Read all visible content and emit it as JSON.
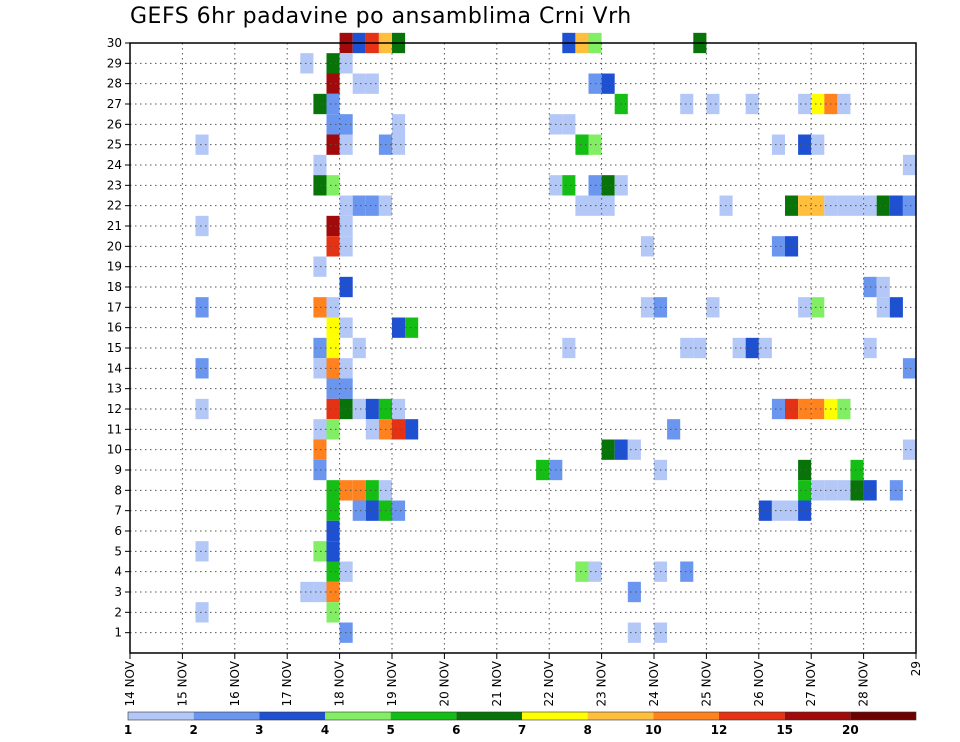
{
  "chart_data": {
    "type": "heatmap",
    "title": "GEFS 6hr padavine po ansamblima Crni Vrh",
    "xlabel": "",
    "ylabel": "",
    "x_tick_labels": [
      "14 NOV",
      "15 NOV",
      "16 NOV",
      "17 NOV",
      "18 NOV",
      "19 NOV",
      "20 NOV",
      "21 NOV",
      "22 NOV",
      "23 NOV",
      "24 NOV",
      "25 NOV",
      "26 NOV",
      "27 NOV",
      "28 NOV",
      "29"
    ],
    "y_tick_labels": [
      "1",
      "2",
      "3",
      "4",
      "5",
      "6",
      "7",
      "8",
      "9",
      "10",
      "11",
      "12",
      "13",
      "14",
      "15",
      "16",
      "17",
      "18",
      "19",
      "20",
      "21",
      "22",
      "23",
      "24",
      "25",
      "26",
      "27",
      "28",
      "29",
      "30"
    ],
    "x_range_days": [
      0,
      15
    ],
    "y_range_members": [
      0,
      30
    ],
    "grid": true,
    "colorbar_labels": [
      "1",
      "2",
      "3",
      "4",
      "5",
      "6",
      "7",
      "8",
      "10",
      "12",
      "15",
      "20"
    ],
    "palette": [
      "#b4c8f8",
      "#6a96f0",
      "#1e50d2",
      "#82ee64",
      "#14be14",
      "#087308",
      "#ffff00",
      "#ffbe3c",
      "#ff821e",
      "#e63214",
      "#a00a0a",
      "#6e0000"
    ],
    "cells": [
      {
        "day": 4.0,
        "member": 30,
        "c": 10
      },
      {
        "day": 4.25,
        "member": 30,
        "c": 2
      },
      {
        "day": 4.5,
        "member": 30,
        "c": 9
      },
      {
        "day": 4.75,
        "member": 30,
        "c": 7
      },
      {
        "day": 5.0,
        "member": 30,
        "c": 5
      },
      {
        "day": 8.25,
        "member": 30,
        "c": 2
      },
      {
        "day": 8.5,
        "member": 30,
        "c": 7
      },
      {
        "day": 8.75,
        "member": 30,
        "c": 3
      },
      {
        "day": 10.75,
        "member": 30,
        "c": 5
      },
      {
        "day": 3.25,
        "member": 29,
        "c": 0
      },
      {
        "day": 3.75,
        "member": 29,
        "c": 5
      },
      {
        "day": 4.0,
        "member": 29,
        "c": 0
      },
      {
        "day": 3.75,
        "member": 28,
        "c": 10
      },
      {
        "day": 4.25,
        "member": 28,
        "c": 0
      },
      {
        "day": 4.5,
        "member": 28,
        "c": 0
      },
      {
        "day": 8.75,
        "member": 28,
        "c": 1
      },
      {
        "day": 9.0,
        "member": 28,
        "c": 2
      },
      {
        "day": 3.5,
        "member": 27,
        "c": 5
      },
      {
        "day": 3.75,
        "member": 27,
        "c": 1
      },
      {
        "day": 9.25,
        "member": 27,
        "c": 4
      },
      {
        "day": 10.5,
        "member": 27,
        "c": 0
      },
      {
        "day": 11.0,
        "member": 27,
        "c": 0
      },
      {
        "day": 11.75,
        "member": 27,
        "c": 0
      },
      {
        "day": 12.75,
        "member": 27,
        "c": 0
      },
      {
        "day": 13.0,
        "member": 27,
        "c": 6
      },
      {
        "day": 13.25,
        "member": 27,
        "c": 8
      },
      {
        "day": 13.5,
        "member": 27,
        "c": 0
      },
      {
        "day": 3.75,
        "member": 26,
        "c": 1
      },
      {
        "day": 4.0,
        "member": 26,
        "c": 1
      },
      {
        "day": 5.0,
        "member": 26,
        "c": 0
      },
      {
        "day": 8.0,
        "member": 26,
        "c": 0
      },
      {
        "day": 8.25,
        "member": 26,
        "c": 0
      },
      {
        "day": 1.25,
        "member": 25,
        "c": 0
      },
      {
        "day": 3.75,
        "member": 25,
        "c": 10
      },
      {
        "day": 4.0,
        "member": 25,
        "c": 0
      },
      {
        "day": 4.75,
        "member": 25,
        "c": 1
      },
      {
        "day": 5.0,
        "member": 25,
        "c": 0
      },
      {
        "day": 8.5,
        "member": 25,
        "c": 4
      },
      {
        "day": 8.75,
        "member": 25,
        "c": 3
      },
      {
        "day": 12.25,
        "member": 25,
        "c": 0
      },
      {
        "day": 12.75,
        "member": 25,
        "c": 2
      },
      {
        "day": 13.0,
        "member": 25,
        "c": 0
      },
      {
        "day": 3.5,
        "member": 24,
        "c": 0
      },
      {
        "day": 14.75,
        "member": 24,
        "c": 0
      },
      {
        "day": 3.5,
        "member": 23,
        "c": 5
      },
      {
        "day": 3.75,
        "member": 23,
        "c": 3
      },
      {
        "day": 8.0,
        "member": 23,
        "c": 0
      },
      {
        "day": 8.25,
        "member": 23,
        "c": 4
      },
      {
        "day": 8.75,
        "member": 23,
        "c": 1
      },
      {
        "day": 9.0,
        "member": 23,
        "c": 5
      },
      {
        "day": 9.25,
        "member": 23,
        "c": 0
      },
      {
        "day": 4.0,
        "member": 22,
        "c": 0
      },
      {
        "day": 4.25,
        "member": 22,
        "c": 1
      },
      {
        "day": 4.5,
        "member": 22,
        "c": 1
      },
      {
        "day": 4.75,
        "member": 22,
        "c": 0
      },
      {
        "day": 8.5,
        "member": 22,
        "c": 0
      },
      {
        "day": 8.75,
        "member": 22,
        "c": 0
      },
      {
        "day": 9.0,
        "member": 22,
        "c": 0
      },
      {
        "day": 11.25,
        "member": 22,
        "c": 0
      },
      {
        "day": 12.5,
        "member": 22,
        "c": 5
      },
      {
        "day": 12.75,
        "member": 22,
        "c": 7
      },
      {
        "day": 13.0,
        "member": 22,
        "c": 7
      },
      {
        "day": 13.25,
        "member": 22,
        "c": 0
      },
      {
        "day": 13.5,
        "member": 22,
        "c": 0
      },
      {
        "day": 13.75,
        "member": 22,
        "c": 0
      },
      {
        "day": 14.0,
        "member": 22,
        "c": 0
      },
      {
        "day": 14.25,
        "member": 22,
        "c": 5
      },
      {
        "day": 14.5,
        "member": 22,
        "c": 2
      },
      {
        "day": 14.75,
        "member": 22,
        "c": 1
      },
      {
        "day": 1.25,
        "member": 21,
        "c": 0
      },
      {
        "day": 3.75,
        "member": 21,
        "c": 10
      },
      {
        "day": 4.0,
        "member": 21,
        "c": 0
      },
      {
        "day": 3.75,
        "member": 20,
        "c": 9
      },
      {
        "day": 4.0,
        "member": 20,
        "c": 0
      },
      {
        "day": 9.75,
        "member": 20,
        "c": 0
      },
      {
        "day": 12.25,
        "member": 20,
        "c": 1
      },
      {
        "day": 12.5,
        "member": 20,
        "c": 2
      },
      {
        "day": 3.5,
        "member": 19,
        "c": 0
      },
      {
        "day": 4.0,
        "member": 18,
        "c": 2
      },
      {
        "day": 14.0,
        "member": 18,
        "c": 1
      },
      {
        "day": 14.25,
        "member": 18,
        "c": 0
      },
      {
        "day": 1.25,
        "member": 17,
        "c": 1
      },
      {
        "day": 3.5,
        "member": 17,
        "c": 8
      },
      {
        "day": 3.75,
        "member": 17,
        "c": 0
      },
      {
        "day": 9.75,
        "member": 17,
        "c": 0
      },
      {
        "day": 10.0,
        "member": 17,
        "c": 1
      },
      {
        "day": 11.0,
        "member": 17,
        "c": 0
      },
      {
        "day": 12.75,
        "member": 17,
        "c": 0
      },
      {
        "day": 13.0,
        "member": 17,
        "c": 3
      },
      {
        "day": 14.25,
        "member": 17,
        "c": 0
      },
      {
        "day": 14.5,
        "member": 17,
        "c": 2
      },
      {
        "day": 3.75,
        "member": 16,
        "c": 6
      },
      {
        "day": 4.0,
        "member": 16,
        "c": 0
      },
      {
        "day": 5.0,
        "member": 16,
        "c": 2
      },
      {
        "day": 5.25,
        "member": 16,
        "c": 4
      },
      {
        "day": 3.5,
        "member": 15,
        "c": 1
      },
      {
        "day": 3.75,
        "member": 15,
        "c": 6
      },
      {
        "day": 4.25,
        "member": 15,
        "c": 0
      },
      {
        "day": 8.25,
        "member": 15,
        "c": 0
      },
      {
        "day": 10.5,
        "member": 15,
        "c": 0
      },
      {
        "day": 10.75,
        "member": 15,
        "c": 0
      },
      {
        "day": 11.5,
        "member": 15,
        "c": 0
      },
      {
        "day": 11.75,
        "member": 15,
        "c": 2
      },
      {
        "day": 12.0,
        "member": 15,
        "c": 0
      },
      {
        "day": 14.0,
        "member": 15,
        "c": 0
      },
      {
        "day": 1.25,
        "member": 14,
        "c": 1
      },
      {
        "day": 3.5,
        "member": 14,
        "c": 0
      },
      {
        "day": 3.75,
        "member": 14,
        "c": 8
      },
      {
        "day": 4.0,
        "member": 14,
        "c": 0
      },
      {
        "day": 14.75,
        "member": 14,
        "c": 1
      },
      {
        "day": 3.75,
        "member": 13,
        "c": 1
      },
      {
        "day": 4.0,
        "member": 13,
        "c": 1
      },
      {
        "day": 1.25,
        "member": 12,
        "c": 0
      },
      {
        "day": 3.75,
        "member": 12,
        "c": 9
      },
      {
        "day": 4.0,
        "member": 12,
        "c": 5
      },
      {
        "day": 4.25,
        "member": 12,
        "c": 0
      },
      {
        "day": 4.5,
        "member": 12,
        "c": 2
      },
      {
        "day": 4.75,
        "member": 12,
        "c": 4
      },
      {
        "day": 5.0,
        "member": 12,
        "c": 0
      },
      {
        "day": 12.25,
        "member": 12,
        "c": 1
      },
      {
        "day": 12.5,
        "member": 12,
        "c": 9
      },
      {
        "day": 12.75,
        "member": 12,
        "c": 8
      },
      {
        "day": 13.0,
        "member": 12,
        "c": 8
      },
      {
        "day": 13.25,
        "member": 12,
        "c": 6
      },
      {
        "day": 13.5,
        "member": 12,
        "c": 3
      },
      {
        "day": 3.5,
        "member": 11,
        "c": 0
      },
      {
        "day": 3.75,
        "member": 11,
        "c": 3
      },
      {
        "day": 4.5,
        "member": 11,
        "c": 0
      },
      {
        "day": 4.75,
        "member": 11,
        "c": 8
      },
      {
        "day": 5.0,
        "member": 11,
        "c": 9
      },
      {
        "day": 5.25,
        "member": 11,
        "c": 2
      },
      {
        "day": 10.25,
        "member": 11,
        "c": 1
      },
      {
        "day": 3.5,
        "member": 10,
        "c": 8
      },
      {
        "day": 9.0,
        "member": 10,
        "c": 5
      },
      {
        "day": 9.25,
        "member": 10,
        "c": 2
      },
      {
        "day": 9.5,
        "member": 10,
        "c": 0
      },
      {
        "day": 14.75,
        "member": 10,
        "c": 0
      },
      {
        "day": 3.5,
        "member": 9,
        "c": 1
      },
      {
        "day": 7.75,
        "member": 9,
        "c": 4
      },
      {
        "day": 8.0,
        "member": 9,
        "c": 1
      },
      {
        "day": 10.0,
        "member": 9,
        "c": 0
      },
      {
        "day": 12.75,
        "member": 9,
        "c": 5
      },
      {
        "day": 13.75,
        "member": 9,
        "c": 4
      },
      {
        "day": 3.75,
        "member": 8,
        "c": 4
      },
      {
        "day": 4.0,
        "member": 8,
        "c": 8
      },
      {
        "day": 4.25,
        "member": 8,
        "c": 8
      },
      {
        "day": 4.5,
        "member": 8,
        "c": 4
      },
      {
        "day": 4.75,
        "member": 8,
        "c": 0
      },
      {
        "day": 12.75,
        "member": 8,
        "c": 4
      },
      {
        "day": 13.0,
        "member": 8,
        "c": 0
      },
      {
        "day": 13.25,
        "member": 8,
        "c": 0
      },
      {
        "day": 13.5,
        "member": 8,
        "c": 0
      },
      {
        "day": 13.75,
        "member": 8,
        "c": 5
      },
      {
        "day": 14.0,
        "member": 8,
        "c": 2
      },
      {
        "day": 14.5,
        "member": 8,
        "c": 1
      },
      {
        "day": 3.75,
        "member": 7,
        "c": 4
      },
      {
        "day": 4.25,
        "member": 7,
        "c": 1
      },
      {
        "day": 4.5,
        "member": 7,
        "c": 2
      },
      {
        "day": 4.75,
        "member": 7,
        "c": 4
      },
      {
        "day": 5.0,
        "member": 7,
        "c": 1
      },
      {
        "day": 12.0,
        "member": 7,
        "c": 2
      },
      {
        "day": 12.25,
        "member": 7,
        "c": 0
      },
      {
        "day": 12.5,
        "member": 7,
        "c": 0
      },
      {
        "day": 12.75,
        "member": 7,
        "c": 2
      },
      {
        "day": 3.75,
        "member": 6,
        "c": 2
      },
      {
        "day": 1.25,
        "member": 5,
        "c": 0
      },
      {
        "day": 3.5,
        "member": 5,
        "c": 3
      },
      {
        "day": 3.75,
        "member": 5,
        "c": 2
      },
      {
        "day": 3.75,
        "member": 4,
        "c": 4
      },
      {
        "day": 4.0,
        "member": 4,
        "c": 0
      },
      {
        "day": 8.5,
        "member": 4,
        "c": 3
      },
      {
        "day": 8.75,
        "member": 4,
        "c": 0
      },
      {
        "day": 10.0,
        "member": 4,
        "c": 0
      },
      {
        "day": 10.5,
        "member": 4,
        "c": 1
      },
      {
        "day": 3.25,
        "member": 3,
        "c": 0
      },
      {
        "day": 3.5,
        "member": 3,
        "c": 0
      },
      {
        "day": 3.75,
        "member": 3,
        "c": 8
      },
      {
        "day": 9.5,
        "member": 3,
        "c": 1
      },
      {
        "day": 1.25,
        "member": 2,
        "c": 0
      },
      {
        "day": 3.75,
        "member": 2,
        "c": 3
      },
      {
        "day": 4.0,
        "member": 1,
        "c": 1
      },
      {
        "day": 9.5,
        "member": 1,
        "c": 0
      },
      {
        "day": 10.0,
        "member": 1,
        "c": 0
      }
    ]
  }
}
